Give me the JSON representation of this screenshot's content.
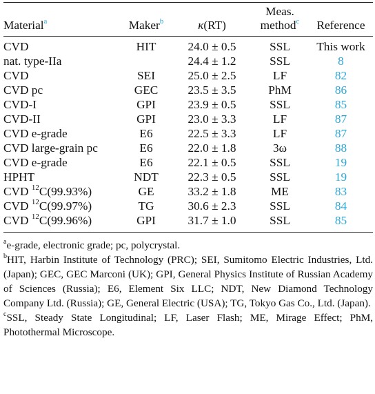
{
  "header": {
    "material": "Material",
    "material_note": "a",
    "maker": "Maker",
    "maker_note": "b",
    "kappa_symbol": "κ",
    "kappa_rest": "(RT)",
    "method_line1": "Meas.",
    "method_line2": "method",
    "method_note": "c",
    "reference": "Reference"
  },
  "rows": [
    {
      "material": "CVD",
      "maker": "HIT",
      "kappa": "24.0 ± 0.5",
      "method": "SSL",
      "reference": "This work",
      "ref_link": false
    },
    {
      "material": "nat. type-IIa",
      "maker": "",
      "kappa": "24.4 ± 1.2",
      "method": "SSL",
      "reference": "8",
      "ref_link": true
    },
    {
      "material": "CVD",
      "maker": "SEI",
      "kappa": "25.0 ± 2.5",
      "method": "LF",
      "reference": "82",
      "ref_link": true
    },
    {
      "material": "CVD pc",
      "maker": "GEC",
      "kappa": "23.5 ± 3.5",
      "method": "PhM",
      "reference": "86",
      "ref_link": true
    },
    {
      "material": "CVD-I",
      "maker": "GPI",
      "kappa": "23.9 ± 0.5",
      "method": "SSL",
      "reference": "85",
      "ref_link": true
    },
    {
      "material": "CVD-II",
      "maker": "GPI",
      "kappa": "23.0 ± 3.3",
      "method": "LF",
      "reference": "87",
      "ref_link": true
    },
    {
      "material": "CVD e-grade",
      "maker": "E6",
      "kappa": "22.5 ± 3.3",
      "method": "LF",
      "reference": "87",
      "ref_link": true
    },
    {
      "material": "CVD large-grain pc",
      "maker": "E6",
      "kappa": "22.0 ± 1.8",
      "method": "3ω",
      "reference": "88",
      "ref_link": true
    },
    {
      "material": "CVD e-grade",
      "maker": "E6",
      "kappa": "22.1 ± 0.5",
      "method": "SSL",
      "reference": "19",
      "ref_link": true
    },
    {
      "material": "HPHT",
      "maker": "NDT",
      "kappa": "22.3 ± 0.5",
      "method": "SSL",
      "reference": "19",
      "ref_link": true
    },
    {
      "material_pre": "CVD ",
      "material_sup": "12",
      "material_post": "C(99.93%)",
      "maker": "GE",
      "kappa": "33.2 ± 1.8",
      "method": "ME",
      "reference": "83",
      "ref_link": true
    },
    {
      "material_pre": "CVD ",
      "material_sup": "12",
      "material_post": "C(99.97%)",
      "maker": "TG",
      "kappa": "30.6 ± 2.3",
      "method": "SSL",
      "reference": "84",
      "ref_link": true
    },
    {
      "material_pre": "CVD ",
      "material_sup": "12",
      "material_post": "C(99.96%)",
      "maker": "GPI",
      "kappa": "31.7 ± 1.0",
      "method": "SSL",
      "reference": "85",
      "ref_link": true
    }
  ],
  "footnotes": [
    {
      "mark": "a",
      "text": "e-grade, electronic grade; pc, polycrystal."
    },
    {
      "mark": "b",
      "text": "HIT, Harbin Institute of Technology (PRC); SEI, Sumitomo Electric Industries, Ltd. (Japan); GEC, GEC Marconi (UK); GPI, General Physics Institute of Russian Academy of Sciences (Russia); E6, Element Six LLC; NDT, New Diamond Technology Company Ltd. (Russia); GE, General Electric (USA); TG, Tokyo Gas Co., Ltd. (Japan)."
    },
    {
      "mark": "c",
      "text": "SSL, Steady State Longitudinal; LF, Laser Flash; ME, Mirage Effect; PhM, Photothermal Microscope."
    }
  ],
  "colors": {
    "link": "#2aa7d6",
    "text": "#111111",
    "rule": "#222222"
  }
}
